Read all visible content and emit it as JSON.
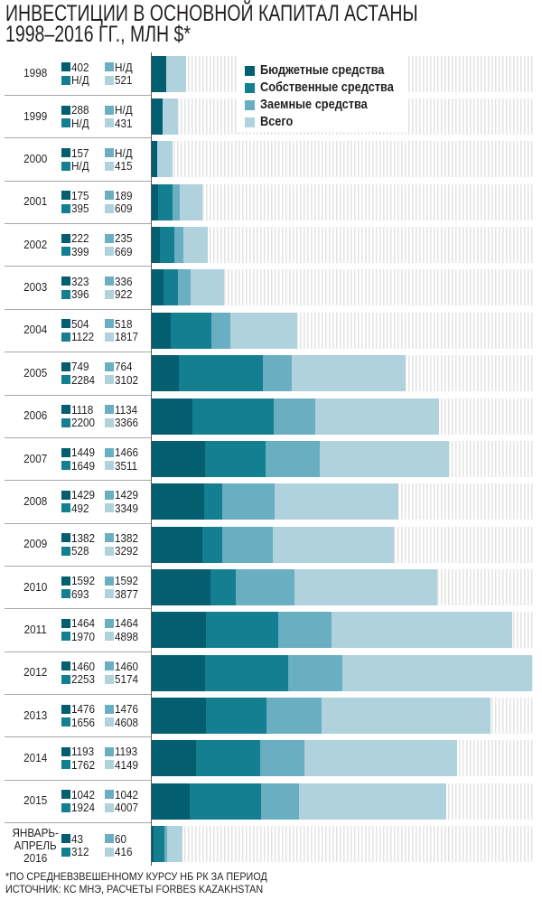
{
  "title": {
    "line1": "ИНВЕСТИЦИИ В ОСНОВНОЙ КАПИТАЛ АСТАНЫ",
    "line2": "1998–2016 ГГ., МЛН $*"
  },
  "legend": [
    {
      "label": "Бюджетные средства",
      "color": "#035e70"
    },
    {
      "label": "Собственные средства",
      "color": "#137f90"
    },
    {
      "label": "Заемные средства",
      "color": "#6aaec2"
    },
    {
      "label": "Всего",
      "color": "#b0d2dc"
    }
  ],
  "na_label": "Н/Д",
  "footnote": {
    "line1": "*ПО СРЕДНЕВЗВЕШЕННОМУ КУРСУ НБ РК ЗА ПЕРИОД",
    "line2": "ИСТОЧНИК: КС МНЭ, РАСЧЕТЫ FORBES KAZAKHSTAN"
  },
  "chart_data": {
    "type": "bar",
    "orientation": "horizontal",
    "stacked": true,
    "title": "Инвестиции в основной капитал Астаны 1998–2016 гг., млн $*",
    "xlabel": "",
    "ylabel": "",
    "xlim": [
      0,
      10370
    ],
    "grid": false,
    "legend_position": "top-right",
    "categories": [
      "1998",
      "1999",
      "2000",
      "2001",
      "2002",
      "2003",
      "2004",
      "2005",
      "2006",
      "2007",
      "2008",
      "2009",
      "2010",
      "2011",
      "2012",
      "2013",
      "2014",
      "2015",
      "ЯНВАРЬ-\nАПРЕЛЬ\n2016"
    ],
    "series": [
      {
        "name": "Бюджетные средства",
        "color": "#035e70",
        "values": [
          402,
          288,
          157,
          175,
          222,
          323,
          504,
          749,
          1118,
          1449,
          1429,
          1382,
          1592,
          1464,
          1460,
          1476,
          1193,
          1042,
          43
        ]
      },
      {
        "name": "Собственные средства",
        "color": "#137f90",
        "values": [
          null,
          null,
          null,
          395,
          399,
          396,
          1122,
          2284,
          2200,
          1649,
          492,
          528,
          693,
          1970,
          2253,
          1656,
          1762,
          1924,
          312
        ]
      },
      {
        "name": "Заемные средства",
        "color": "#6aaec2",
        "values": [
          null,
          null,
          null,
          189,
          235,
          336,
          518,
          764,
          1134,
          1466,
          1429,
          1382,
          1592,
          1464,
          1460,
          1476,
          1193,
          1042,
          60
        ]
      },
      {
        "name": "Всего",
        "color": "#b0d2dc",
        "values": [
          521,
          431,
          415,
          609,
          669,
          922,
          1817,
          3102,
          3366,
          3511,
          3349,
          3292,
          3877,
          4898,
          5174,
          4608,
          4149,
          4007,
          416
        ]
      }
    ]
  }
}
